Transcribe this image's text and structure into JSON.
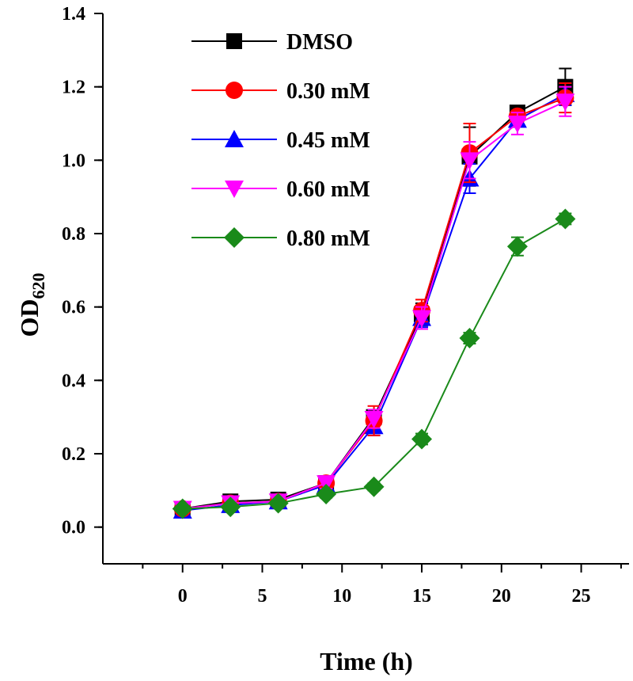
{
  "chart_data": {
    "type": "line",
    "title": "",
    "xlabel": "Time (h)",
    "ylabel_main": "OD",
    "ylabel_sub": "620",
    "xlim": [
      -5,
      28
    ],
    "ylim": [
      -0.1,
      1.4
    ],
    "xticks": [
      0,
      5,
      10,
      15,
      20,
      25
    ],
    "xtick_labels": [
      "0",
      "5",
      "10",
      "15",
      "20",
      "25"
    ],
    "yticks": [
      0.0,
      0.2,
      0.4,
      0.6,
      0.8,
      1.0,
      1.2,
      1.4
    ],
    "ytick_labels": [
      "0.0",
      "0.2",
      "0.4",
      "0.6",
      "0.8",
      "1.0",
      "1.2",
      "1.4"
    ],
    "legend_position": "top-left",
    "x": [
      0,
      3,
      6,
      9,
      12,
      15,
      18,
      21,
      24
    ],
    "series": [
      {
        "name": "DMSO",
        "color": "#000000",
        "marker": "square",
        "values": [
          0.05,
          0.07,
          0.075,
          0.12,
          0.3,
          0.58,
          1.01,
          1.13,
          1.2
        ],
        "errors": [
          0.01,
          0.01,
          0.01,
          0.015,
          0.02,
          0.03,
          0.08,
          0.015,
          0.05
        ]
      },
      {
        "name": "0.30 mM",
        "color": "#ff0000",
        "marker": "circle",
        "values": [
          0.05,
          0.065,
          0.07,
          0.12,
          0.29,
          0.59,
          1.02,
          1.12,
          1.17
        ],
        "errors": [
          0.01,
          0.01,
          0.01,
          0.015,
          0.04,
          0.03,
          0.08,
          0.015,
          0.04
        ]
      },
      {
        "name": "0.45 mM",
        "color": "#0000ff",
        "marker": "triangle-up",
        "values": [
          0.045,
          0.06,
          0.07,
          0.115,
          0.275,
          0.57,
          0.95,
          1.11,
          1.18
        ],
        "errors": [
          0.01,
          0.01,
          0.01,
          0.015,
          0.025,
          0.025,
          0.04,
          0.015,
          0.03
        ]
      },
      {
        "name": "0.60 mM",
        "color": "#ff00ff",
        "marker": "triangle-down",
        "values": [
          0.05,
          0.065,
          0.07,
          0.12,
          0.295,
          0.57,
          1.0,
          1.1,
          1.16
        ],
        "errors": [
          0.01,
          0.01,
          0.01,
          0.015,
          0.025,
          0.03,
          0.05,
          0.03,
          0.04
        ]
      },
      {
        "name": "0.80 mM",
        "color": "#1a8a1a",
        "marker": "diamond",
        "values": [
          0.05,
          0.055,
          0.065,
          0.09,
          0.11,
          0.24,
          0.515,
          0.765,
          0.84
        ],
        "errors": [
          0.005,
          0.005,
          0.005,
          0.01,
          0.01,
          0.015,
          0.015,
          0.025,
          0.015
        ]
      }
    ]
  }
}
